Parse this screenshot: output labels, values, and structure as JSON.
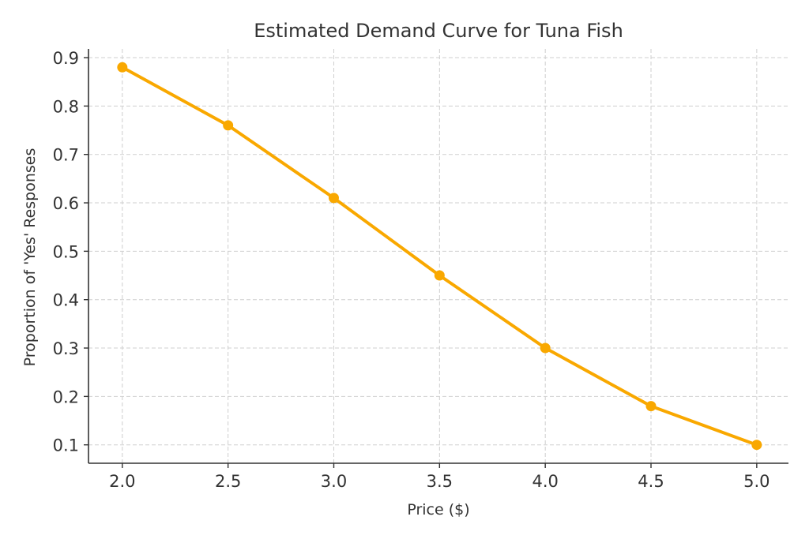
{
  "chart_data": {
    "type": "line",
    "title": "Estimated Demand Curve for Tuna Fish",
    "xlabel": "Price ($)",
    "ylabel": "Proportion of 'Yes' Responses",
    "x": [
      2.0,
      2.5,
      3.0,
      3.5,
      4.0,
      4.5,
      5.0
    ],
    "series": [
      {
        "values": [
          0.88,
          0.76,
          0.61,
          0.45,
          0.3,
          0.18,
          0.1
        ],
        "color": "#f9a800",
        "marker": "circle"
      }
    ],
    "x_ticks": [
      "2.0",
      "2.5",
      "3.0",
      "3.5",
      "4.0",
      "4.5",
      "5.0"
    ],
    "y_ticks": [
      "0.1",
      "0.2",
      "0.3",
      "0.4",
      "0.5",
      "0.6",
      "0.7",
      "0.8",
      "0.9"
    ],
    "xlim": [
      1.84,
      5.15
    ],
    "ylim": [
      0.062,
      0.918
    ],
    "grid": true,
    "legend": "none"
  }
}
